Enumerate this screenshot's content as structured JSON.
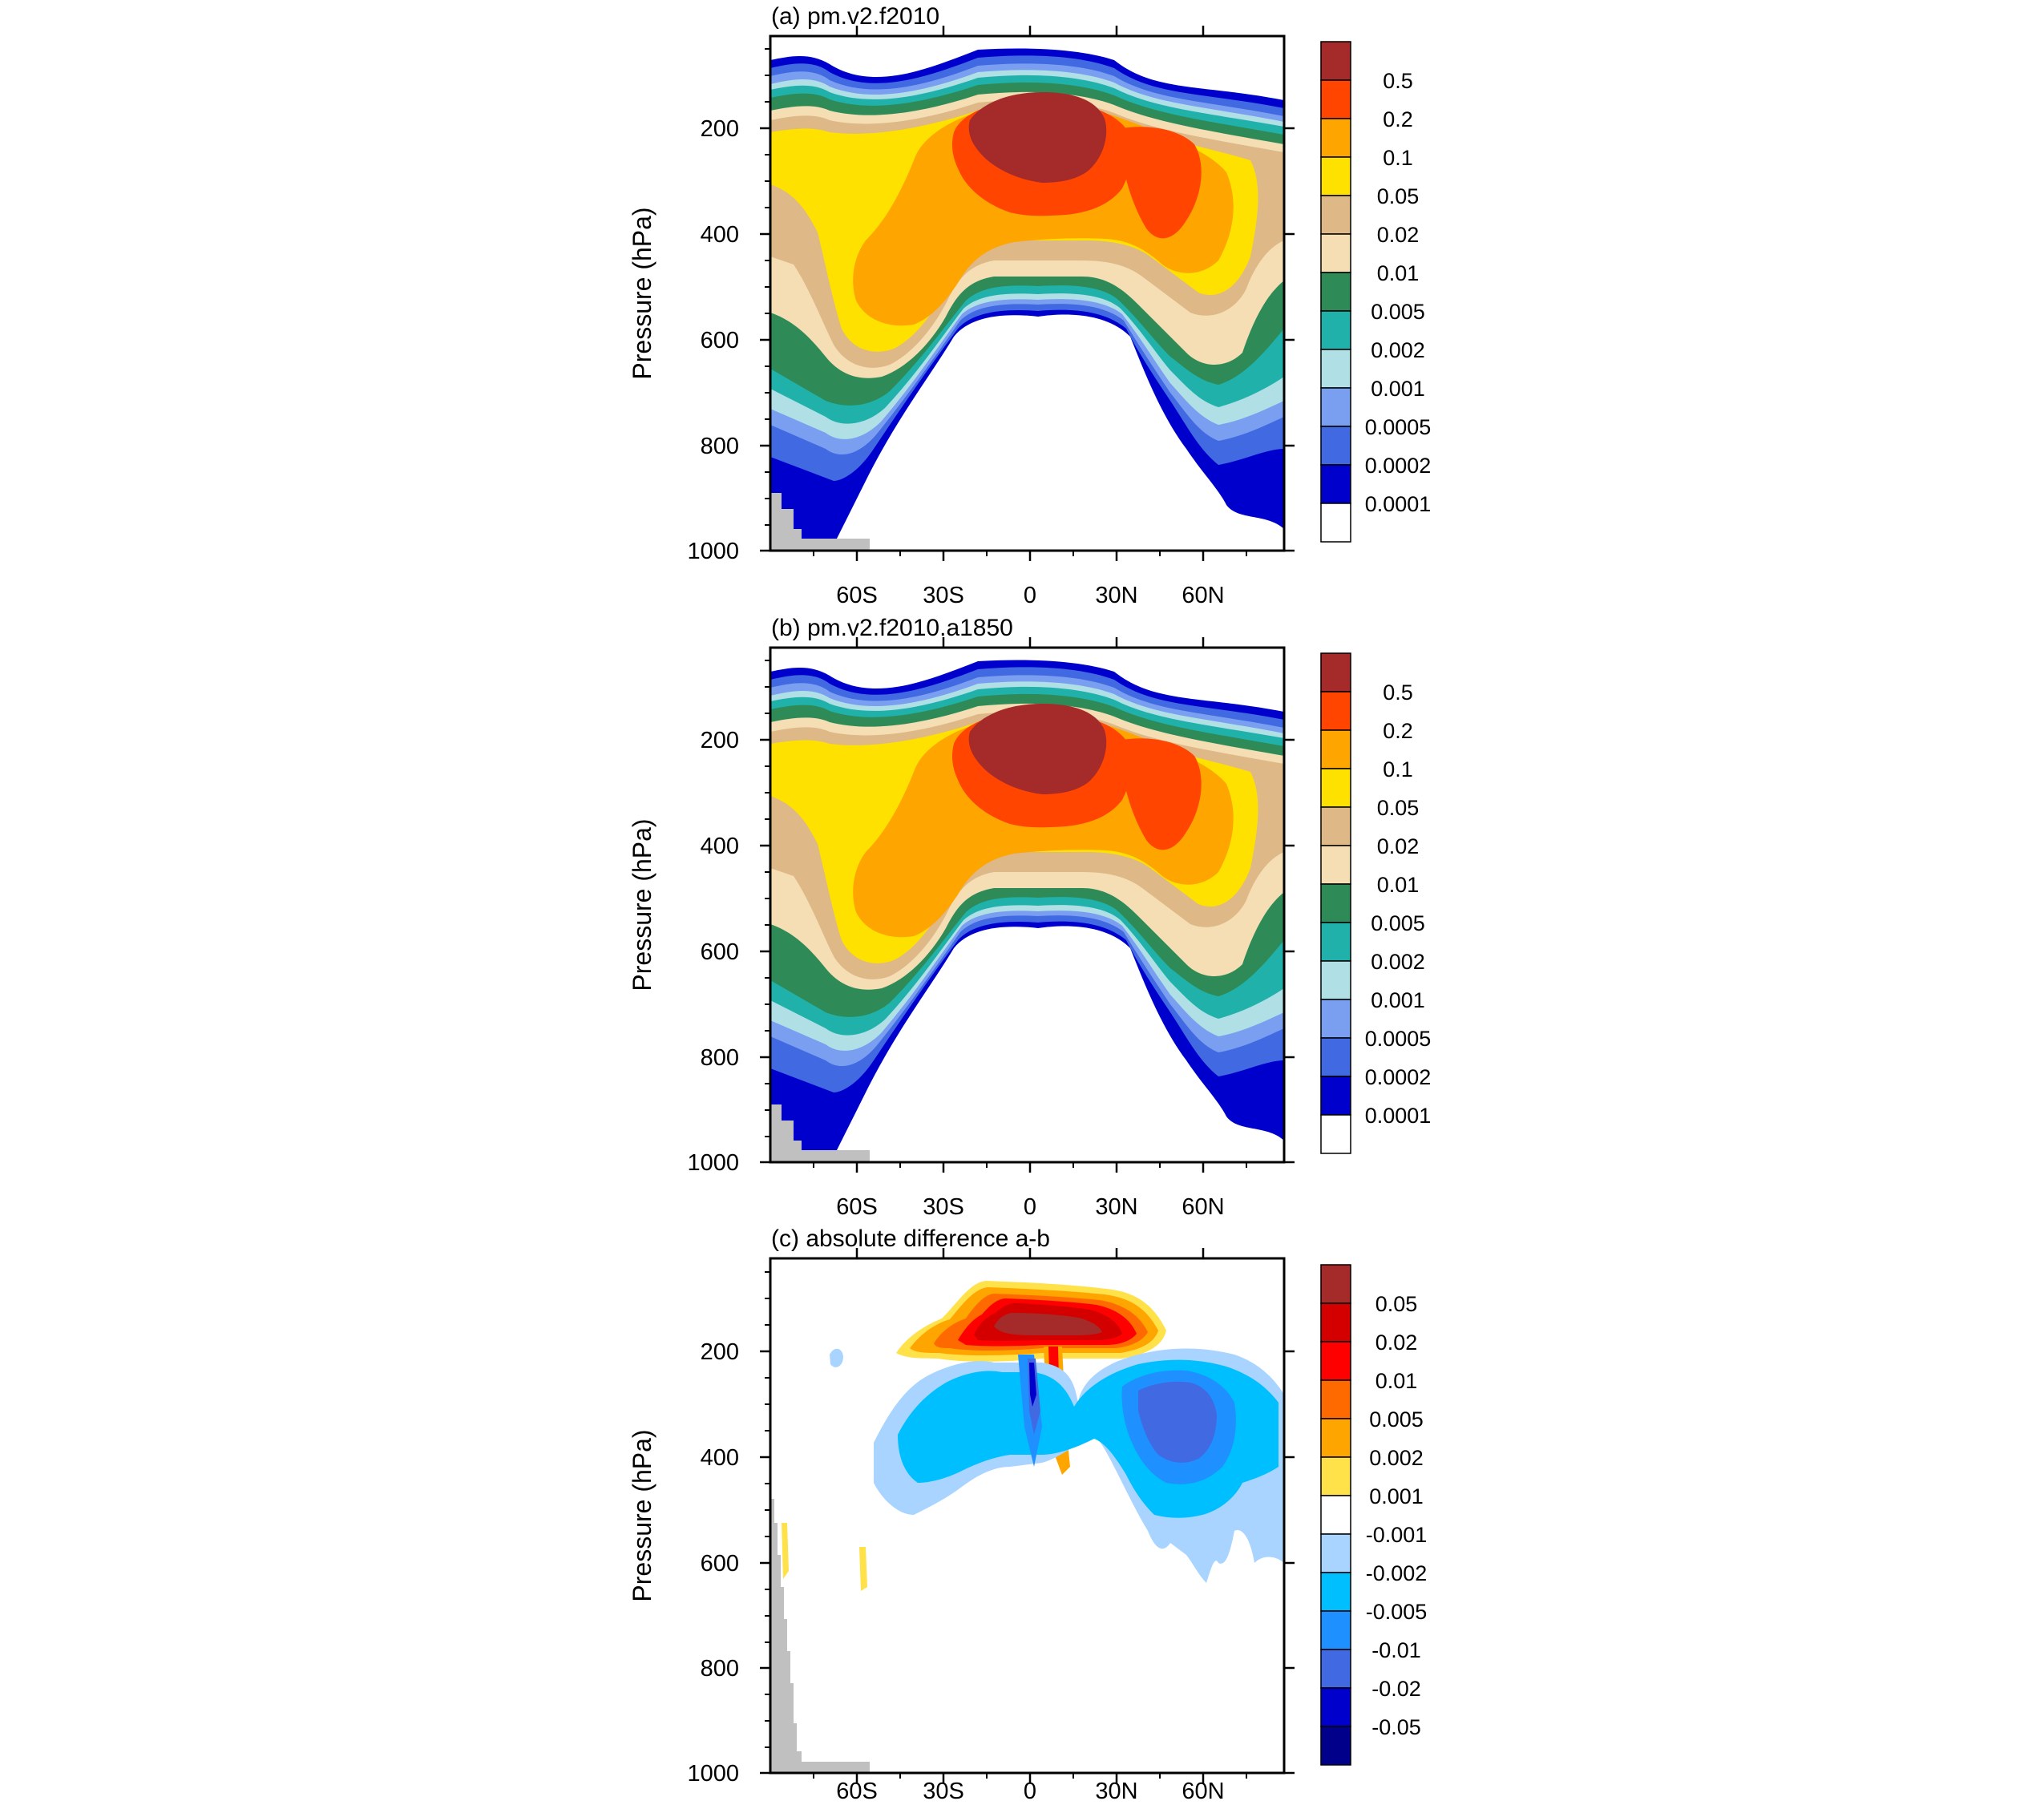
{
  "chart_data": [
    {
      "type": "heatmap",
      "title": "(a) pm.v2.f2010",
      "ylabel": "Pressure (hPa)",
      "ylim": [
        1000,
        50
      ],
      "y_reversed": true,
      "y_ticks": [
        "200",
        "400",
        "600",
        "800",
        "1000"
      ],
      "x_ticks": [
        "60S",
        "30S",
        "0",
        "30N",
        "60N"
      ],
      "colorbar": {
        "labels": [
          "0.5",
          "0.2",
          "0.1",
          "0.05",
          "0.02",
          "0.01",
          "0.005",
          "0.002",
          "0.001",
          "0.0005",
          "0.0002",
          "0.0001"
        ],
        "colors": [
          "#a52a2a",
          "#ff4500",
          "#ffa500",
          "#ffe100",
          "#deb887",
          "#f5deb3",
          "#2e8b57",
          "#20b2aa",
          "#b0e0e6",
          "#7b9ff0",
          "#4169e1",
          "#0000cd",
          "#ffffff"
        ]
      }
    },
    {
      "type": "heatmap",
      "title": "(b) pm.v2.f2010.a1850",
      "ylabel": "Pressure (hPa)",
      "ylim": [
        1000,
        50
      ],
      "y_reversed": true,
      "y_ticks": [
        "200",
        "400",
        "600",
        "800",
        "1000"
      ],
      "x_ticks": [
        "60S",
        "30S",
        "0",
        "30N",
        "60N"
      ],
      "colorbar": {
        "labels": [
          "0.5",
          "0.2",
          "0.1",
          "0.05",
          "0.02",
          "0.01",
          "0.005",
          "0.002",
          "0.001",
          "0.0005",
          "0.0002",
          "0.0001"
        ],
        "colors": [
          "#a52a2a",
          "#ff4500",
          "#ffa500",
          "#ffe100",
          "#deb887",
          "#f5deb3",
          "#2e8b57",
          "#20b2aa",
          "#b0e0e6",
          "#7b9ff0",
          "#4169e1",
          "#0000cd",
          "#ffffff"
        ]
      }
    },
    {
      "type": "heatmap",
      "title": "(c) absolute difference a-b",
      "ylabel": "Pressure (hPa)",
      "ylim": [
        1000,
        50
      ],
      "y_reversed": true,
      "y_ticks": [
        "200",
        "400",
        "600",
        "800",
        "1000"
      ],
      "x_ticks": [
        "60S",
        "30S",
        "0",
        "30N",
        "60N"
      ],
      "colorbar": {
        "labels": [
          "0.05",
          "0.02",
          "0.01",
          "0.005",
          "0.002",
          "0.001",
          "-0.001",
          "-0.002",
          "-0.005",
          "-0.01",
          "-0.02",
          "-0.05"
        ],
        "colors": [
          "#a52a2a",
          "#d40000",
          "#ff0000",
          "#ff6a00",
          "#ffa500",
          "#ffe14a",
          "#ffffff",
          "#a8d4ff",
          "#00bfff",
          "#1e90ff",
          "#4169e1",
          "#0000cd",
          "#00008b"
        ]
      }
    }
  ],
  "colors": {
    "missing": "#c0c0c0",
    "axis": "#000000"
  }
}
